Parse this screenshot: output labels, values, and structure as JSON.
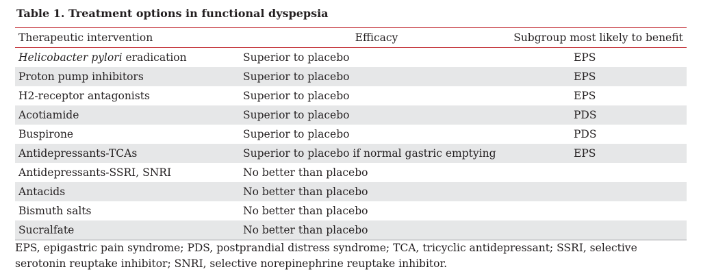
{
  "caption": "Table 1. Treatment options in functional dyspepsia",
  "columns": {
    "intervention": "Therapeutic intervention",
    "efficacy": "Efficacy",
    "subgroup": "Subgroup most likely to benefit"
  },
  "rows": [
    {
      "intervention_italic": "Helicobacter pylori",
      "intervention": " eradication",
      "efficacy": "Superior to placebo",
      "subgroup": "EPS"
    },
    {
      "intervention_italic": "",
      "intervention": "Proton pump inhibitors",
      "efficacy": "Superior to placebo",
      "subgroup": "EPS"
    },
    {
      "intervention_italic": "",
      "intervention": "H2-receptor antagonists",
      "efficacy": "Superior to placebo",
      "subgroup": "EPS"
    },
    {
      "intervention_italic": "",
      "intervention": "Acotiamide",
      "efficacy": "Superior to placebo",
      "subgroup": "PDS"
    },
    {
      "intervention_italic": "",
      "intervention": "Buspirone",
      "efficacy": "Superior to placebo",
      "subgroup": "PDS"
    },
    {
      "intervention_italic": "",
      "intervention": "Antidepressants-TCAs",
      "efficacy": "Superior to placebo if normal gastric emptying",
      "subgroup": "EPS"
    },
    {
      "intervention_italic": "",
      "intervention": "Antidepressants-SSRI, SNRI",
      "efficacy": "No better than placebo",
      "subgroup": ""
    },
    {
      "intervention_italic": "",
      "intervention": "Antacids",
      "efficacy": "No better than placebo",
      "subgroup": ""
    },
    {
      "intervention_italic": "",
      "intervention": "Bismuth salts",
      "efficacy": "No better than placebo",
      "subgroup": ""
    },
    {
      "intervention_italic": "",
      "intervention": "Sucralfate",
      "efficacy": "No better than placebo",
      "subgroup": ""
    }
  ],
  "footnote": "EPS, epigastric pain syndrome; PDS, postprandial distress syndrome; TCA, tricyclic antidepressant; SSRI, selective serotonin reuptake inhibitor; SNRI, selective norepinephrine reuptake inhibitor."
}
